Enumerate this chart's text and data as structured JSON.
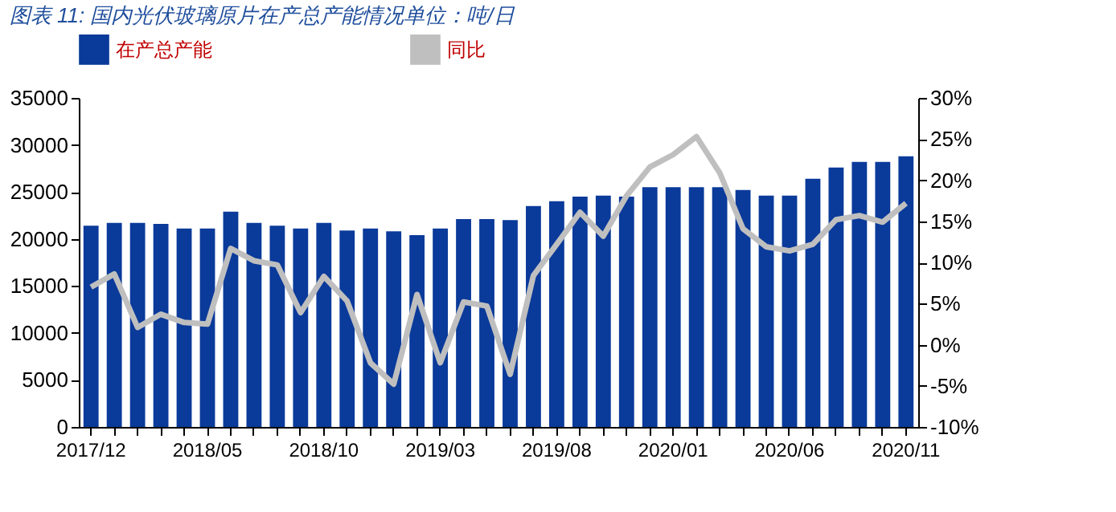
{
  "chart_data": {
    "type": "bar",
    "title": "图表 11: 国内光伏玻璃原片在产总产能情况单位：吨/日",
    "categories": [
      "2017/12",
      null,
      null,
      null,
      null,
      "2018/05",
      null,
      null,
      null,
      null,
      "2018/10",
      null,
      null,
      null,
      null,
      "2019/03",
      null,
      null,
      null,
      null,
      "2019/08",
      null,
      null,
      null,
      null,
      "2020/01",
      null,
      null,
      null,
      null,
      "2020/06",
      null,
      null,
      null,
      null,
      "2020/11"
    ],
    "series": [
      {
        "name": "在产总产能",
        "color": "#0a3a9a",
        "values": [
          21400,
          21700,
          21700,
          21600,
          21100,
          21100,
          22900,
          21700,
          21400,
          21100,
          21700,
          20900,
          21100,
          20800,
          20400,
          21100,
          22100,
          22100,
          22000,
          23500,
          24000,
          24500,
          24600,
          24500,
          25500,
          25500,
          25500,
          25500,
          25200,
          24600,
          24600,
          26400,
          27600,
          28200,
          28200,
          28800
        ]
      },
      {
        "name": "同比",
        "type": "line",
        "axis": "y2",
        "color": "#bfbfbf",
        "values": [
          7.0,
          8.6,
          2.1,
          3.7,
          2.7,
          2.5,
          11.7,
          10.2,
          9.7,
          3.9,
          8.3,
          5.3,
          -2.2,
          -4.8,
          6.1,
          -2.2,
          5.2,
          4.7,
          -3.6,
          8.4,
          12.2,
          16.1,
          13.2,
          18.1,
          21.6,
          23.1,
          25.3,
          20.9,
          14.1,
          11.9,
          11.4,
          12.2,
          15.2,
          15.7,
          14.9,
          17.2
        ]
      }
    ],
    "ylim": [
      0,
      35000
    ],
    "yticks": [
      0,
      5000,
      10000,
      15000,
      20000,
      25000,
      30000,
      35000
    ],
    "y2lim": [
      -10,
      30
    ],
    "y2ticks": [
      {
        "value": -10,
        "label": "-10%"
      },
      {
        "value": -5,
        "label": "-5%"
      },
      {
        "value": 0,
        "label": "0%"
      },
      {
        "value": 5,
        "label": "5%"
      },
      {
        "value": 10,
        "label": "10%"
      },
      {
        "value": 15,
        "label": "15%"
      },
      {
        "value": 20,
        "label": "20%"
      },
      {
        "value": 25,
        "label": "25%"
      },
      {
        "value": 30,
        "label": "30%"
      }
    ],
    "grid": false,
    "legend": "top",
    "marker": "none",
    "line_style": "solid"
  }
}
